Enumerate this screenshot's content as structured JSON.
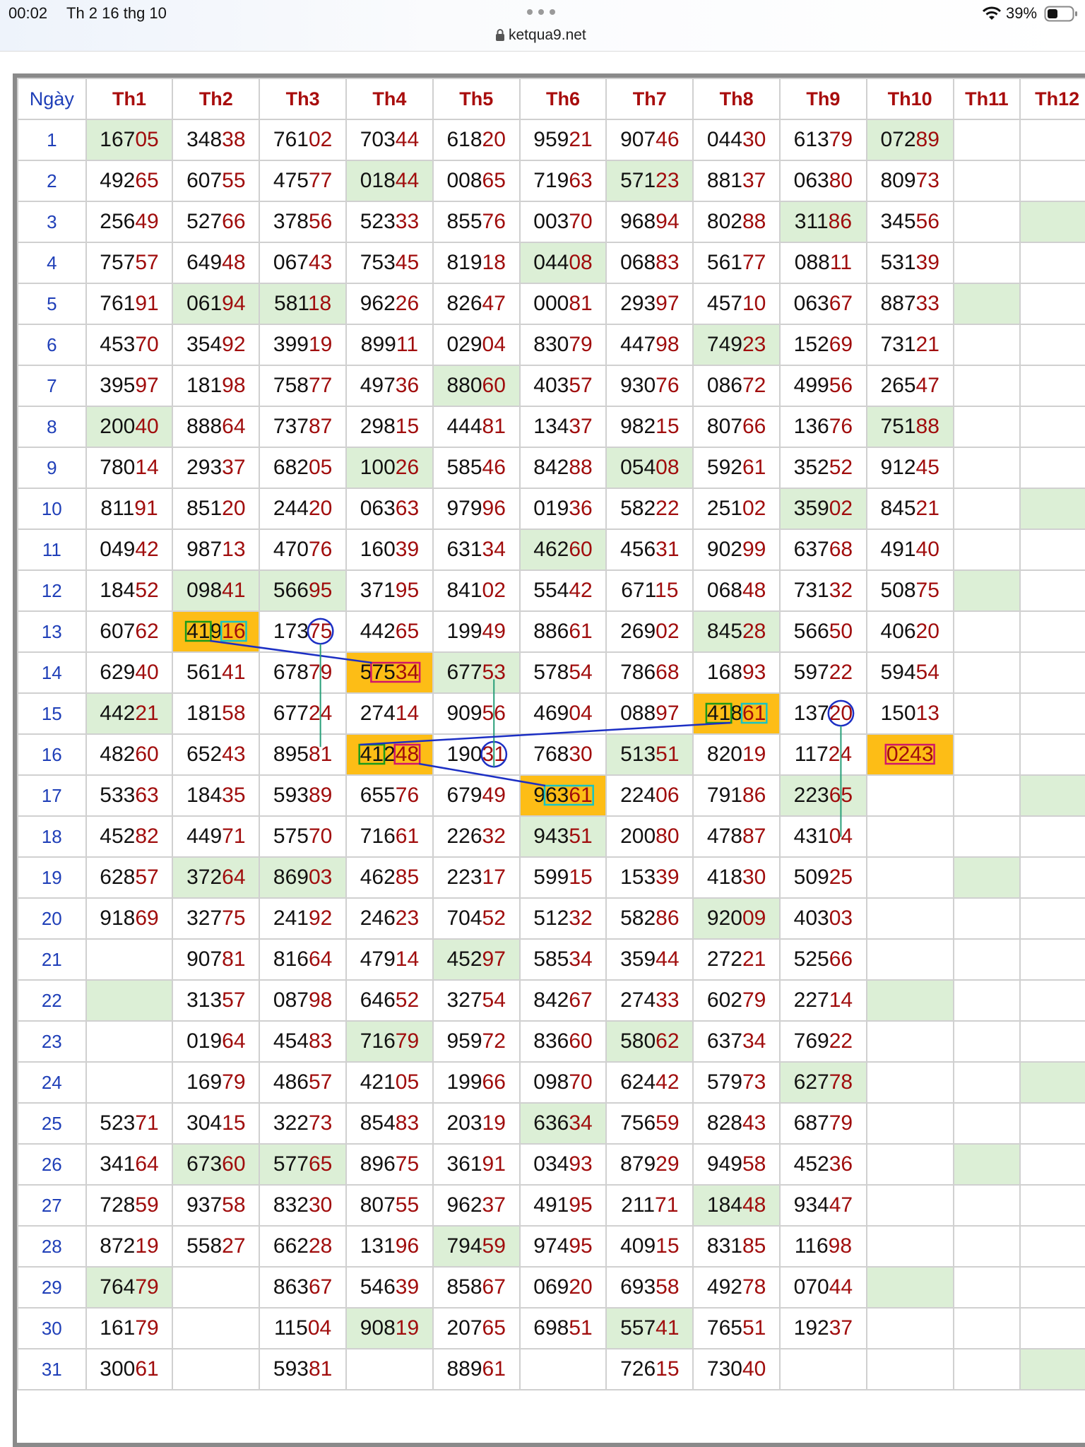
{
  "status_bar": {
    "time": "00:02",
    "date": "Th 2 16 thg 10",
    "url": "ketqua9.net",
    "battery": "39%"
  },
  "table": {
    "header": [
      "Ngày",
      "Th1",
      "Th2",
      "Th3",
      "Th4",
      "Th5",
      "Th6",
      "Th7",
      "Th8",
      "Th9",
      "Th10",
      "Th11",
      "Th12"
    ],
    "rows": [
      [
        "1",
        "16705",
        "34838",
        "76102",
        "70344",
        "61820",
        "95921",
        "90746",
        "04430",
        "61379",
        "07289",
        null,
        null
      ],
      [
        "2",
        "49265",
        "60755",
        "47577",
        "01844",
        "00865",
        "71963",
        "57123",
        "88137",
        "06380",
        "80973",
        null,
        null
      ],
      [
        "3",
        "25649",
        "52766",
        "37856",
        "52333",
        "85576",
        "00370",
        "96894",
        "80288",
        "31186",
        "34556",
        null,
        null
      ],
      [
        "4",
        "75757",
        "64948",
        "06743",
        "75345",
        "81918",
        "04408",
        "06883",
        "56177",
        "08811",
        "53139",
        null,
        null
      ],
      [
        "5",
        "76191",
        "06194",
        "58118",
        "96226",
        "82647",
        "00081",
        "29397",
        "45710",
        "06367",
        "88733",
        null,
        null
      ],
      [
        "6",
        "45370",
        "35492",
        "39919",
        "89911",
        "02904",
        "83079",
        "44798",
        "74923",
        "15269",
        "73121",
        null,
        null
      ],
      [
        "7",
        "39597",
        "18198",
        "75877",
        "49736",
        "88060",
        "40357",
        "93076",
        "08672",
        "49956",
        "26547",
        null,
        null
      ],
      [
        "8",
        "20040",
        "88864",
        "73787",
        "29815",
        "44481",
        "13437",
        "98215",
        "80766",
        "13676",
        "75188",
        null,
        null
      ],
      [
        "9",
        "78014",
        "29337",
        "68205",
        "10026",
        "58546",
        "84288",
        "05408",
        "59261",
        "35252",
        "91245",
        null,
        null
      ],
      [
        "10",
        "81191",
        "85120",
        "24420",
        "06363",
        "97996",
        "01936",
        "58222",
        "25102",
        "35902",
        "84521",
        null,
        null
      ],
      [
        "11",
        "04942",
        "98713",
        "47076",
        "16039",
        "63134",
        "46260",
        "45631",
        "90299",
        "63768",
        "49140",
        null,
        null
      ],
      [
        "12",
        "18452",
        "09841",
        "56695",
        "37195",
        "84102",
        "55442",
        "67115",
        "06848",
        "73132",
        "50875",
        null,
        null
      ],
      [
        "13",
        "60762",
        "41916",
        "17375",
        "44265",
        "19949",
        "88661",
        "26902",
        "84528",
        "56650",
        "40620",
        null,
        null
      ],
      [
        "14",
        "62940",
        "56141",
        "67879",
        "57534",
        "67753",
        "57854",
        "78668",
        "16893",
        "59722",
        "59454",
        null,
        null
      ],
      [
        "15",
        "44221",
        "18158",
        "67724",
        "27414",
        "90956",
        "46904",
        "08897",
        "41861",
        "13720",
        "15013",
        null,
        null
      ],
      [
        "16",
        "48260",
        "65243",
        "89581",
        "41248",
        "19031",
        "76830",
        "51351",
        "82019",
        "11724",
        "0243",
        null,
        null
      ],
      [
        "17",
        "53363",
        "18435",
        "59389",
        "65576",
        "67949",
        "96361",
        "22406",
        "79186",
        "22365",
        null,
        null,
        null
      ],
      [
        "18",
        "45282",
        "44971",
        "57570",
        "71661",
        "22632",
        "94351",
        "20080",
        "47887",
        "43104",
        null,
        null,
        null
      ],
      [
        "19",
        "62857",
        "37264",
        "86903",
        "46285",
        "22317",
        "59915",
        "15339",
        "41830",
        "50925",
        null,
        null,
        null
      ],
      [
        "20",
        "91869",
        "32775",
        "24192",
        "24623",
        "70452",
        "51232",
        "58286",
        "92009",
        "40303",
        null,
        null,
        null
      ],
      [
        "21",
        null,
        "90781",
        "81664",
        "47914",
        "45297",
        "58534",
        "35944",
        "27221",
        "52566",
        null,
        null,
        null
      ],
      [
        "22",
        null,
        "31357",
        "08798",
        "64652",
        "32754",
        "84267",
        "27433",
        "60279",
        "22714",
        null,
        null,
        null
      ],
      [
        "23",
        null,
        "01964",
        "45483",
        "71679",
        "95972",
        "83660",
        "58062",
        "63734",
        "76922",
        null,
        null,
        null
      ],
      [
        "24",
        null,
        "16979",
        "48657",
        "42105",
        "19966",
        "09870",
        "62442",
        "57973",
        "62778",
        null,
        null,
        null
      ],
      [
        "25",
        "52371",
        "30415",
        "32273",
        "85483",
        "20319",
        "63634",
        "75659",
        "82843",
        "68779",
        null,
        null,
        null
      ],
      [
        "26",
        "34164",
        "67360",
        "57765",
        "89675",
        "36191",
        "03493",
        "87929",
        "94958",
        "45236",
        null,
        null,
        null
      ],
      [
        "27",
        "72859",
        "93758",
        "83230",
        "80755",
        "96237",
        "49195",
        "21171",
        "18448",
        "93447",
        null,
        null,
        null
      ],
      [
        "28",
        "87219",
        "55827",
        "66228",
        "13196",
        "79459",
        "97495",
        "40915",
        "83185",
        "11698",
        null,
        null,
        null
      ],
      [
        "29",
        "76479",
        null,
        "86367",
        "54639",
        "85867",
        "06920",
        "69358",
        "49278",
        "07044",
        null,
        null,
        null
      ],
      [
        "30",
        "16179",
        null,
        "11504",
        "90819",
        "20765",
        "69851",
        "55741",
        "76551",
        "19237",
        null,
        null,
        null
      ],
      [
        "31",
        "30061",
        null,
        "59381",
        null,
        "88961",
        null,
        "72615",
        "73040",
        null,
        null,
        null,
        null
      ]
    ]
  }
}
